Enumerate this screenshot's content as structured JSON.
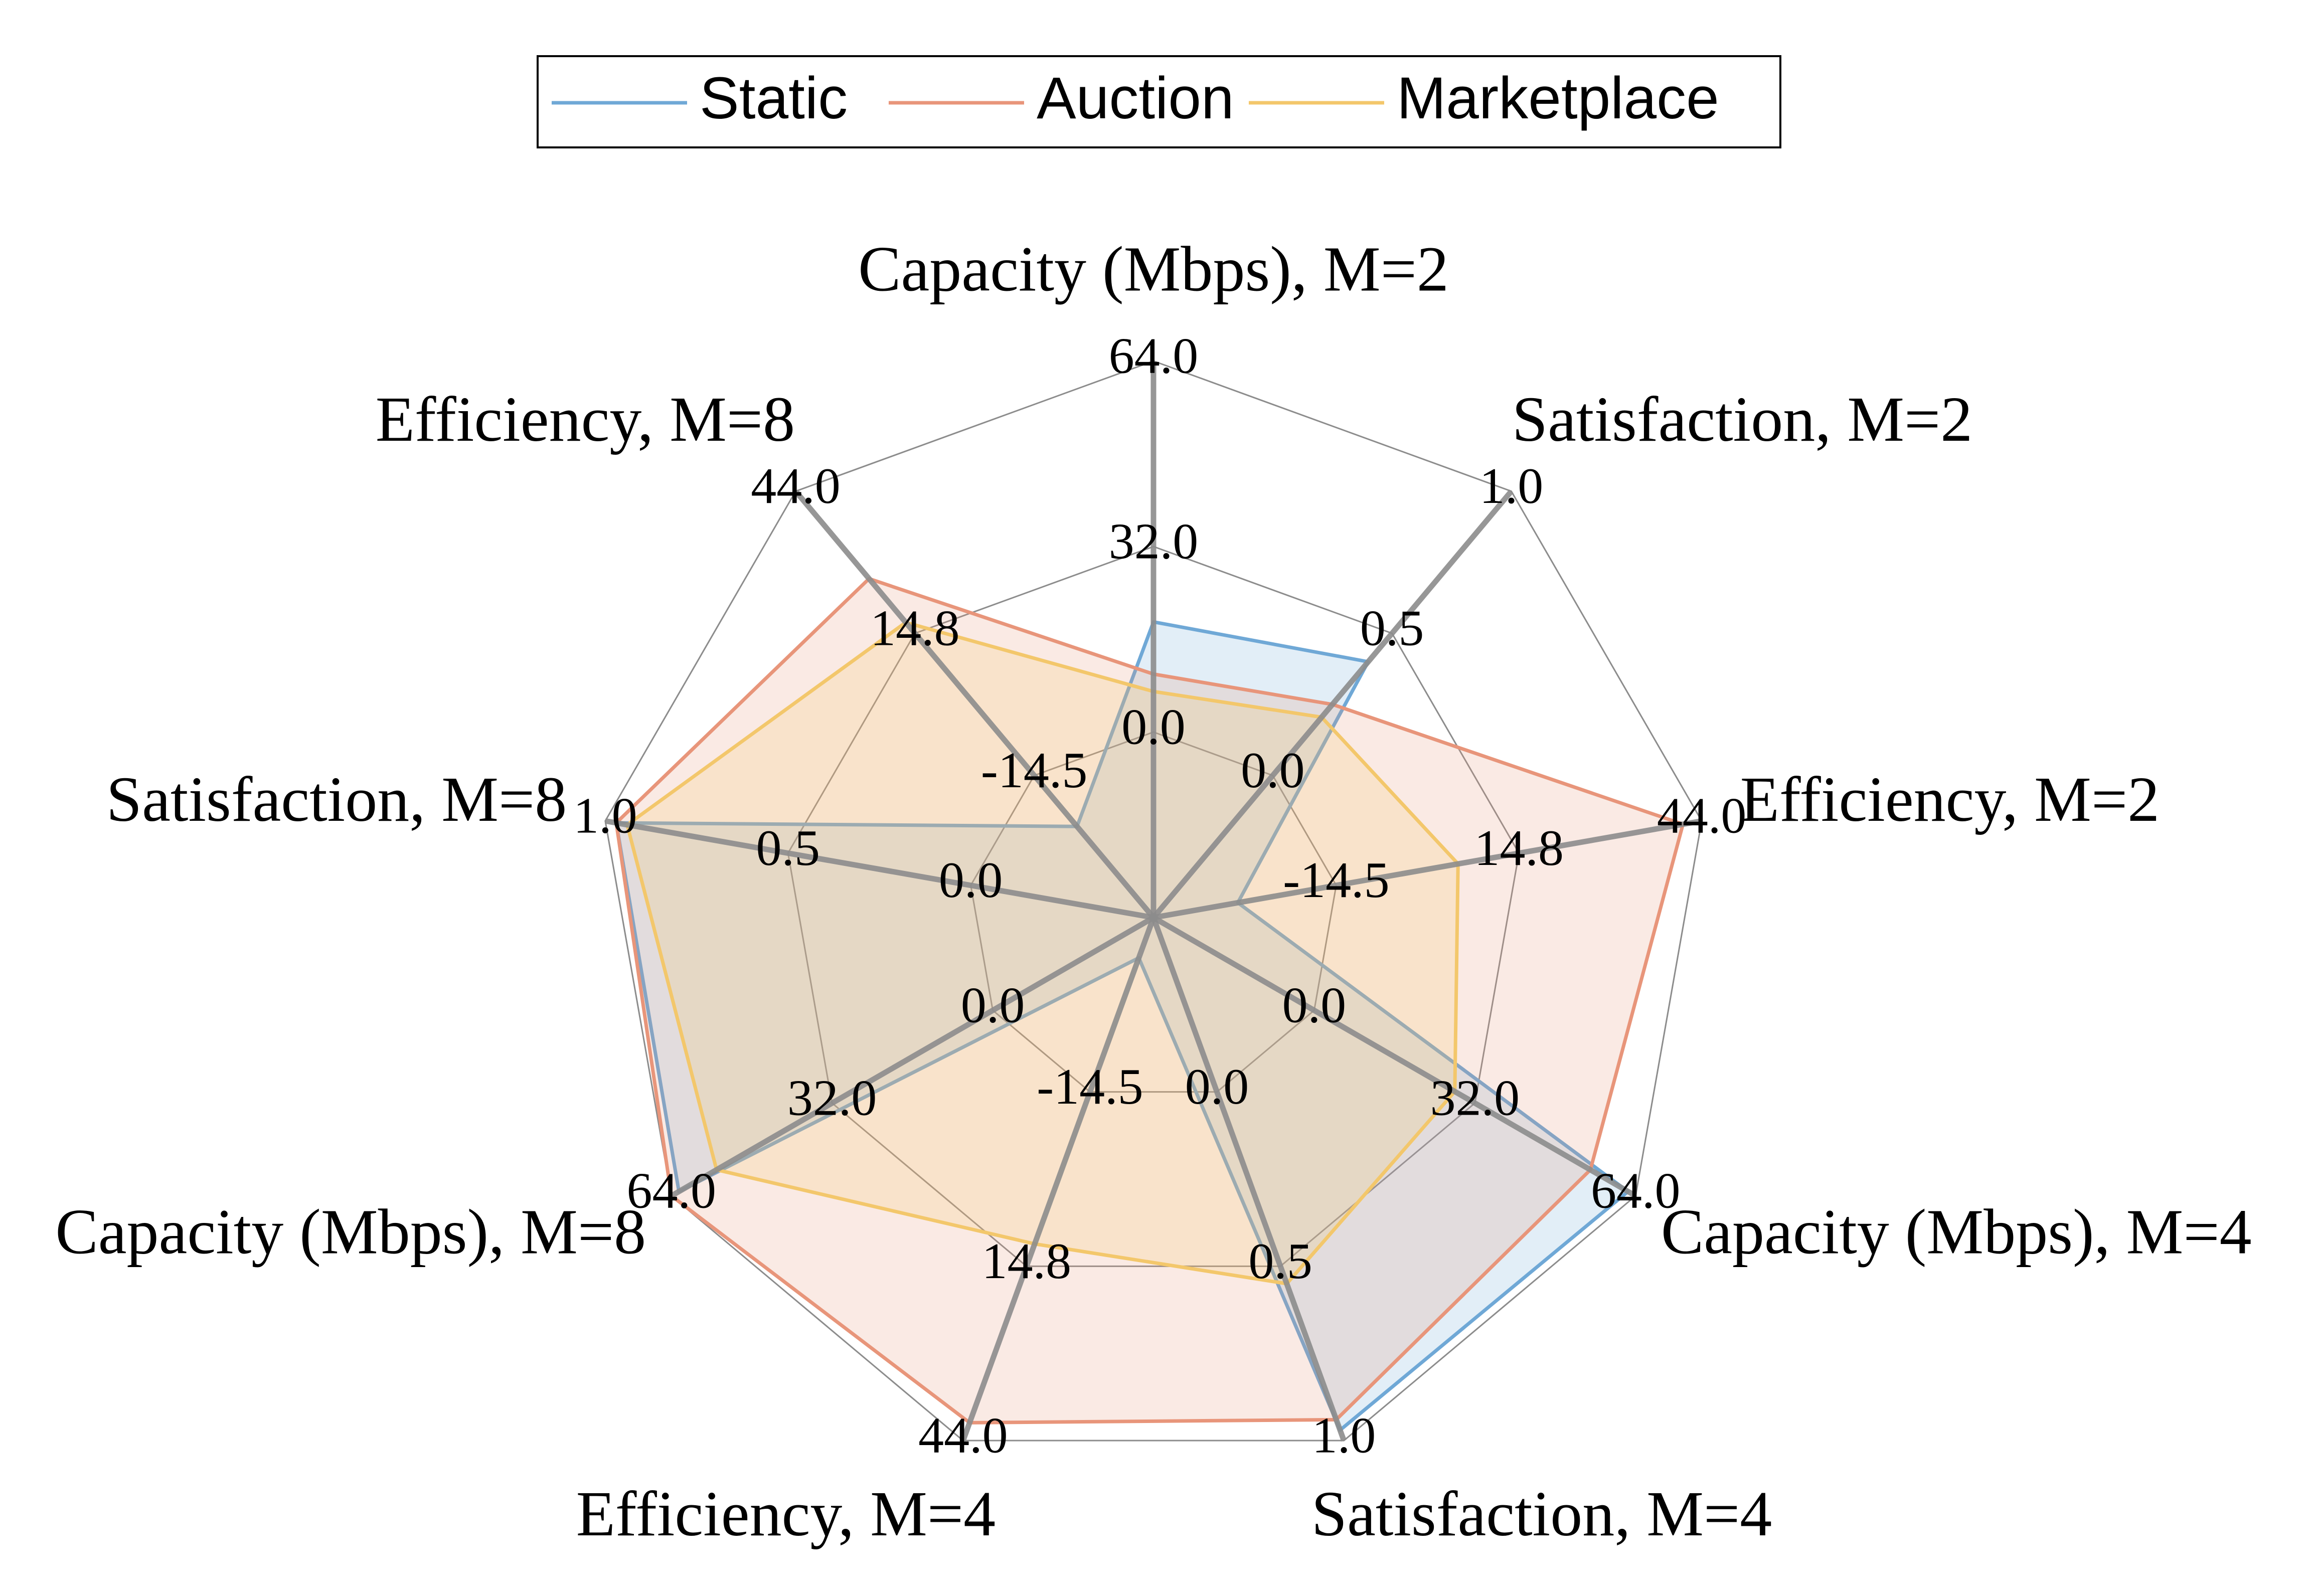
{
  "chart_data": {
    "type": "radar",
    "axes": [
      {
        "label": "Capacity (Mbps), M=2",
        "ticks": [
          "0.0",
          "32.0",
          "64.0"
        ],
        "range": [
          0,
          64
        ]
      },
      {
        "label": "Satisfaction, M=2",
        "ticks": [
          "0.0",
          "0.5",
          "1.0"
        ],
        "range": [
          0,
          1
        ]
      },
      {
        "label": "Efficiency, M=2",
        "ticks": [
          "-14.5",
          "14.8",
          "44.0"
        ],
        "range": [
          -14.5,
          44
        ]
      },
      {
        "label": "Capacity (Mbps), M=4",
        "ticks": [
          "0.0",
          "32.0",
          "64.0"
        ],
        "range": [
          0,
          64
        ]
      },
      {
        "label": "Satisfaction, M=4",
        "ticks": [
          "0.0",
          "0.5",
          "1.0"
        ],
        "range": [
          0,
          1
        ]
      },
      {
        "label": "Efficiency, M=4",
        "ticks": [
          "-14.5",
          "14.8",
          "44.0"
        ],
        "range": [
          -14.5,
          44
        ]
      },
      {
        "label": "Capacity (Mbps), M=8",
        "ticks": [
          "0.0",
          "32.0",
          "64.0"
        ],
        "range": [
          0,
          64
        ]
      },
      {
        "label": "Satisfaction, M=8",
        "ticks": [
          "0.0",
          "0.5",
          "1.0"
        ],
        "range": [
          0,
          1
        ]
      },
      {
        "label": "Efficiency, M=8",
        "ticks": [
          "-14.5",
          "14.8",
          "44.0"
        ],
        "range": [
          -14.5,
          44
        ]
      }
    ],
    "series": [
      {
        "name": "Static",
        "color": "#6fa8d6",
        "values": [
          34,
          0.6,
          -5.5,
          63,
          0.98,
          -10,
          63,
          0.98,
          -2
        ]
      },
      {
        "name": "Auction",
        "color": "#e8957a",
        "values": [
          28,
          0.5,
          42,
          58,
          0.96,
          42,
          64,
          0.98,
          32
        ]
      },
      {
        "name": "Marketplace",
        "color": "#f3c76b",
        "values": [
          26,
          0.47,
          18,
          40,
          0.7,
          22,
          58,
          0.96,
          26
        ]
      }
    ],
    "legend_position": "top-center",
    "grid": true
  }
}
